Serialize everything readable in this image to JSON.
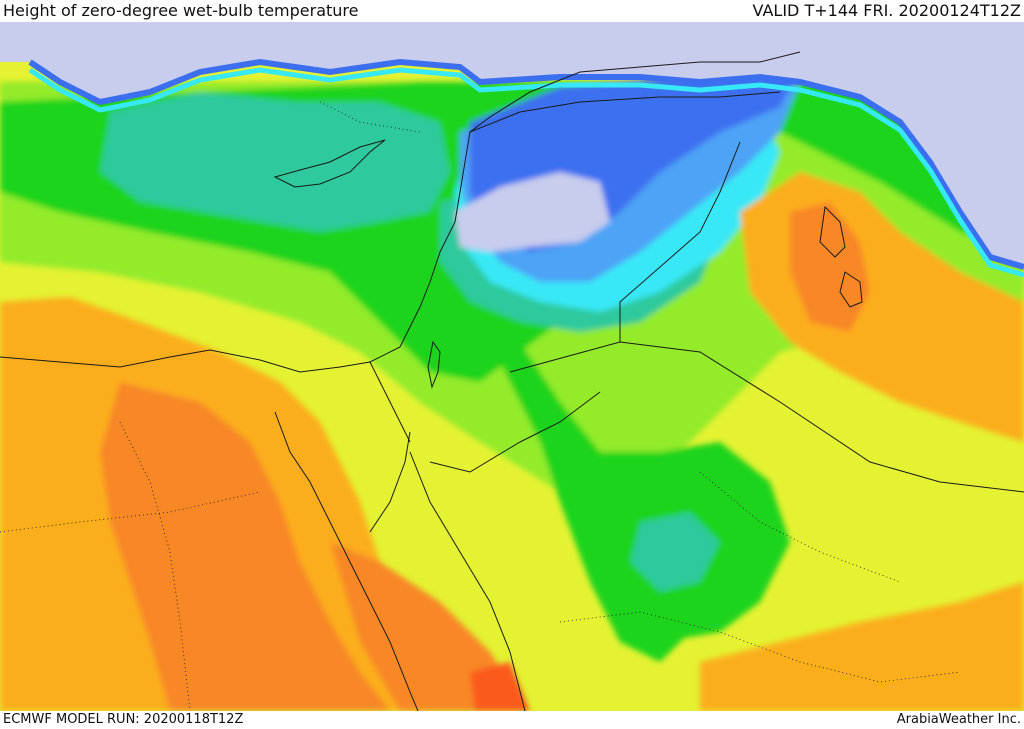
{
  "header": {
    "title": "Height of zero-degree wet-bulb temperature",
    "valid": "VALID T+144 FRI. 20200124T12Z"
  },
  "footer": {
    "model_run": "ECMWF MODEL RUN: 20200118T12Z",
    "credit": "ArabiaWeather Inc."
  },
  "palette": {
    "very_low": "#c8cced",
    "low_blue": "#3c6ff0",
    "mid_blue": "#4da3f6",
    "cyan": "#37e8f6",
    "teal": "#2ec99c",
    "green": "#1ed41e",
    "light_green": "#93eb2a",
    "yellow_green": "#e4f232",
    "orange": "#fbae1c",
    "dark_orange": "#f88728",
    "red_orange": "#fb5a1c",
    "border_line": "#1a1a1a"
  }
}
